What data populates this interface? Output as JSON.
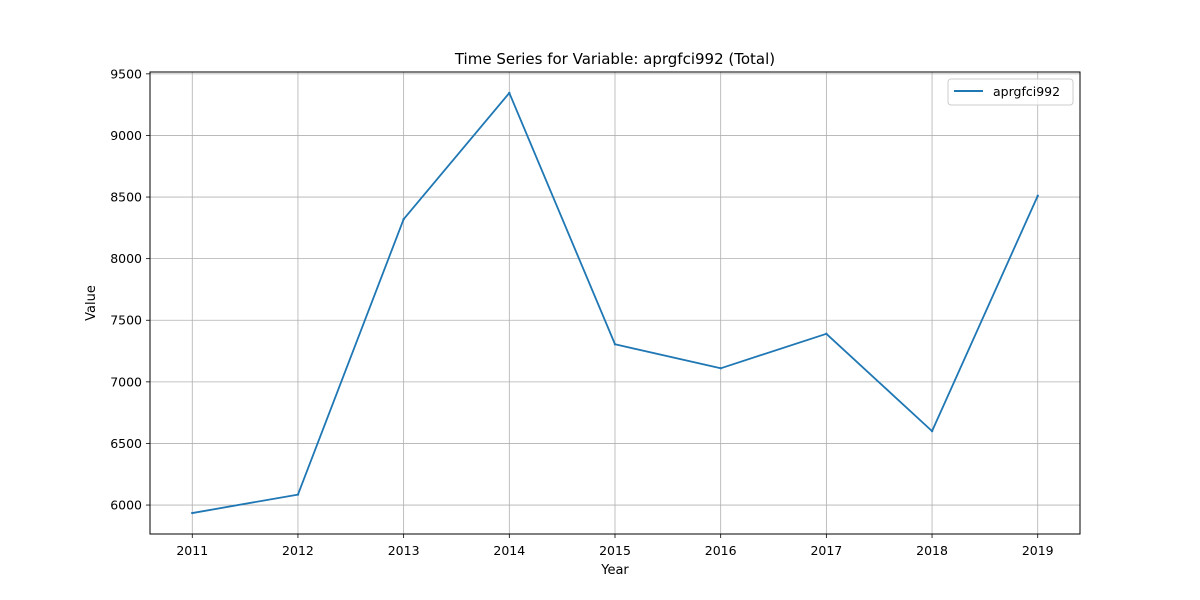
{
  "chart_data": {
    "type": "line",
    "title": "Time Series for Variable: aprgfci992 (Total)",
    "xlabel": "Year",
    "ylabel": "Value",
    "x": [
      2011,
      2012,
      2013,
      2014,
      2015,
      2016,
      2017,
      2018,
      2019
    ],
    "series": [
      {
        "name": "aprgfci992",
        "color": "#1f77b4",
        "values": [
          5935,
          6085,
          8320,
          9345,
          7305,
          7110,
          7390,
          6600,
          8510
        ]
      }
    ],
    "xlim": [
      2010.6,
      2019.4
    ],
    "ylim": [
      5765,
      9515
    ],
    "x_ticks": [
      "2011",
      "2012",
      "2013",
      "2014",
      "2015",
      "2016",
      "2017",
      "2018",
      "2019"
    ],
    "y_ticks": [
      6000,
      6500,
      7000,
      7500,
      8000,
      8500,
      9000,
      9500
    ],
    "y_tick_labels": [
      "6000",
      "6500",
      "7000",
      "7500",
      "8000",
      "8500",
      "9000",
      "9500"
    ],
    "grid": true,
    "legend_position": "top-right"
  }
}
